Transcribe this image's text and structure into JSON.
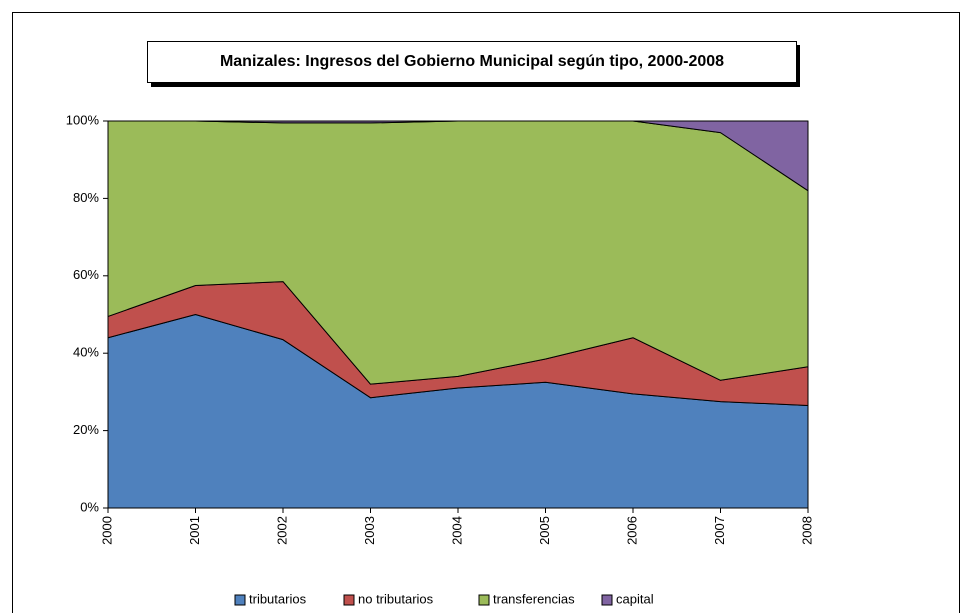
{
  "chart_data": {
    "type": "stacked_area",
    "title": "Manizales: Ingresos del Gobierno Municipal según tipo, 2000-2008",
    "categories": [
      "2000",
      "2001",
      "2002",
      "2003",
      "2004",
      "2005",
      "2006",
      "2007",
      "2008"
    ],
    "series": [
      {
        "name": "tributarios",
        "color": "#4f81bd",
        "values": [
          44,
          50,
          43.5,
          28.5,
          31,
          32.5,
          29.5,
          27.5,
          26.5
        ]
      },
      {
        "name": "no tributarios",
        "color": "#c0504d",
        "values": [
          5.5,
          7.5,
          15,
          3.5,
          3,
          6,
          14.5,
          5.5,
          10
        ]
      },
      {
        "name": "transferencias",
        "color": "#9bbb59",
        "values": [
          50.5,
          42.5,
          41,
          67.5,
          66,
          61.5,
          56,
          64,
          45.5
        ]
      },
      {
        "name": "capital",
        "color": "#8064a2",
        "values": [
          0,
          0,
          0.5,
          0.5,
          0,
          0,
          0,
          3,
          18
        ]
      }
    ],
    "ylim": [
      0,
      100
    ],
    "yticks": [
      {
        "value": 0,
        "label": "0%"
      },
      {
        "value": 20,
        "label": "20%"
      },
      {
        "value": 40,
        "label": "40%"
      },
      {
        "value": 60,
        "label": "60%"
      },
      {
        "value": 80,
        "label": "80%"
      },
      {
        "value": 100,
        "label": "100%"
      }
    ],
    "legend": "bottom"
  }
}
